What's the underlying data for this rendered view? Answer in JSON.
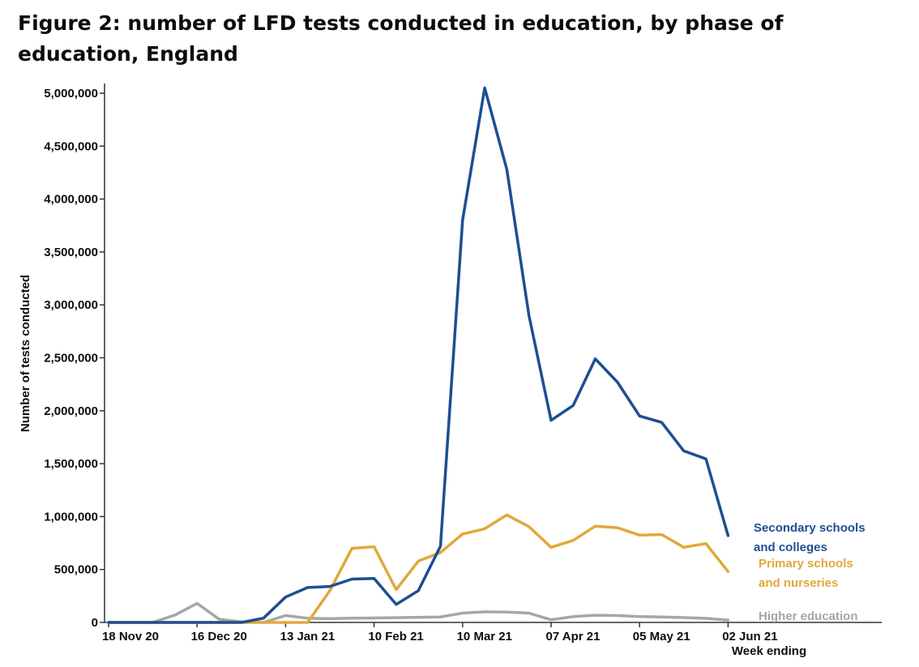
{
  "title": "Figure 2: number of LFD tests conducted in education, by phase of education, England",
  "chart_data": {
    "type": "line",
    "xlabel": "Week ending",
    "ylabel": "Number of tests conducted",
    "ylim": [
      0,
      5000000
    ],
    "yticks": [
      0,
      500000,
      1000000,
      1500000,
      2000000,
      2500000,
      3000000,
      3500000,
      4000000,
      4500000,
      5000000
    ],
    "ytick_labels": [
      "0",
      "500,000",
      "1,000,000",
      "1,500,000",
      "2,000,000",
      "2,500,000",
      "3,000,000",
      "3,500,000",
      "4,000,000",
      "4,500,000",
      "5,000,000"
    ],
    "x": [
      "2020-11-18",
      "2020-11-25",
      "2020-12-02",
      "2020-12-09",
      "2020-12-16",
      "2020-12-23",
      "2020-12-30",
      "2021-01-06",
      "2021-01-13",
      "2021-01-20",
      "2021-01-27",
      "2021-02-03",
      "2021-02-10",
      "2021-02-17",
      "2021-02-24",
      "2021-03-03",
      "2021-03-10",
      "2021-03-17",
      "2021-03-24",
      "2021-03-31",
      "2021-04-07",
      "2021-04-14",
      "2021-04-21",
      "2021-04-28",
      "2021-05-05",
      "2021-05-12",
      "2021-05-19",
      "2021-05-26",
      "2021-06-02"
    ],
    "xticks": [
      "2020-11-18",
      "2020-12-16",
      "2021-01-13",
      "2021-02-10",
      "2021-03-10",
      "2021-04-07",
      "2021-05-05",
      "2021-06-02"
    ],
    "xtick_labels": [
      "18 Nov 20",
      "16 Dec 20",
      "13 Jan 21",
      "10 Feb 21",
      "10 Mar 21",
      "07 Apr 21",
      "05 May 21",
      "02 Jun 21"
    ],
    "grid": false,
    "legend": "direct labels at line ends",
    "series": [
      {
        "name": "Secondary schools and colleges",
        "name_lines": [
          "Secondary schools",
          "and colleges"
        ],
        "color": "#1d4f91",
        "values": [
          0,
          0,
          0,
          0,
          0,
          0,
          0,
          40000,
          240000,
          330000,
          340000,
          410000,
          415000,
          170000,
          300000,
          720000,
          3800000,
          5050000,
          4280000,
          2900000,
          1910000,
          2050000,
          2490000,
          2270000,
          1950000,
          1890000,
          1620000,
          1545000,
          820000
        ]
      },
      {
        "name": "Primary schools and nurseries",
        "name_lines": [
          "Primary schools",
          "and nurseries"
        ],
        "color": "#e1a83a",
        "values": [
          0,
          0,
          0,
          0,
          0,
          0,
          0,
          0,
          0,
          0,
          300000,
          700000,
          715000,
          310000,
          580000,
          660000,
          835000,
          885000,
          1015000,
          905000,
          710000,
          775000,
          910000,
          895000,
          825000,
          830000,
          710000,
          745000,
          480000
        ]
      },
      {
        "name": "Higher education",
        "name_lines": [
          "Higher education"
        ],
        "color": "#a6a6a6",
        "values": [
          0,
          0,
          0,
          70000,
          180000,
          30000,
          5000,
          0,
          65000,
          40000,
          35000,
          40000,
          42000,
          45000,
          48000,
          52000,
          88000,
          100000,
          98000,
          88000,
          25000,
          55000,
          68000,
          65000,
          55000,
          52000,
          46000,
          38000,
          22000
        ]
      }
    ]
  }
}
